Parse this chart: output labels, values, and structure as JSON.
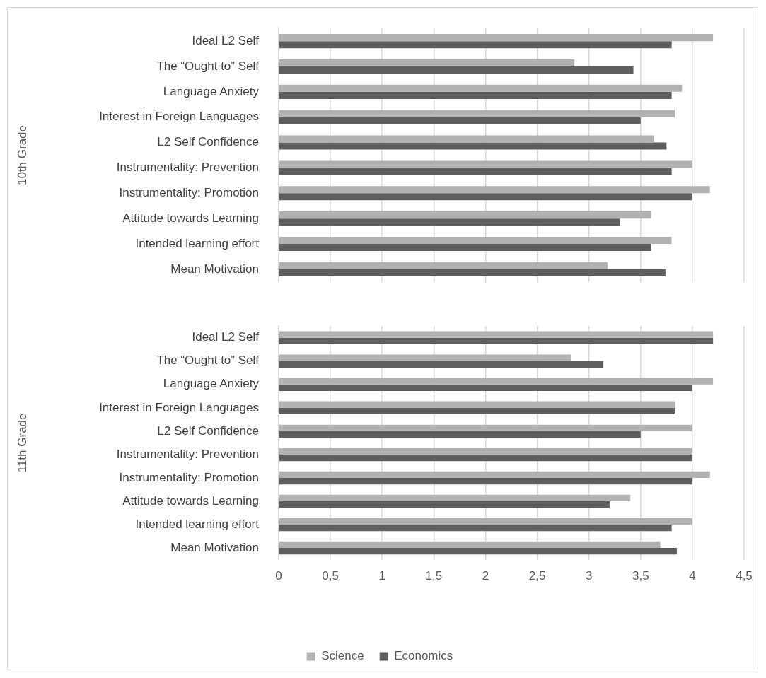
{
  "chart_data": [
    {
      "type": "bar",
      "orientation": "horizontal",
      "ylabel": "10th Grade",
      "categories": [
        "Ideal L2 Self",
        "The “Ought to” Self",
        "Language Anxiety",
        "Interest in Foreign Languages",
        "L2 Self Confidence",
        "Instrumentality: Prevention",
        "Instrumentality: Promotion",
        "Attitude towards Learning",
        "Intended learning effort",
        "Mean Motivation"
      ],
      "series": [
        {
          "color": "#b2b2b2",
          "values": [
            4.2,
            2.86,
            3.9,
            3.83,
            3.63,
            4.0,
            4.17,
            3.6,
            3.8,
            3.18
          ]
        },
        {
          "color": "#5e5e5e",
          "values": [
            3.8,
            3.43,
            3.8,
            3.5,
            3.75,
            3.8,
            4.0,
            3.3,
            3.6,
            3.74
          ]
        }
      ],
      "xlim": [
        0,
        4.5
      ],
      "xticks": [
        {
          "value": 0,
          "label": null
        },
        {
          "value": 0.5,
          "label": null
        },
        {
          "value": 1,
          "label": null
        },
        {
          "value": 1.5,
          "label": null
        },
        {
          "value": 2,
          "label": null
        },
        {
          "value": 2.5,
          "label": null
        },
        {
          "value": 3,
          "label": null
        },
        {
          "value": 3.5,
          "label": null
        },
        {
          "value": 4,
          "label": null
        },
        {
          "value": 4.5,
          "label": null
        }
      ],
      "grid": "x",
      "tick_labels": "y"
    },
    {
      "type": "bar",
      "orientation": "horizontal",
      "ylabel": "11th Grade",
      "categories": [
        "Ideal L2 Self",
        "The “Ought to” Self",
        "Language Anxiety",
        "Interest in Foreign Languages",
        "L2 Self Confidence",
        "Instrumentality: Prevention",
        "Instrumentality: Promotion",
        "Attitude towards Learning",
        "Intended learning effort",
        "Mean Motivation"
      ],
      "series": [
        {
          "name": "Science",
          "color": "#b2b2b2",
          "values": [
            4.2,
            2.83,
            4.2,
            3.83,
            4.0,
            4.0,
            4.17,
            3.4,
            4.0,
            3.69
          ]
        },
        {
          "name": "Economics",
          "color": "#5e5e5e",
          "values": [
            4.2,
            3.14,
            4.0,
            3.83,
            3.5,
            4.0,
            4.0,
            3.2,
            3.8,
            3.85
          ]
        }
      ],
      "xlim": [
        0,
        4.5
      ],
      "xticks": [
        0,
        {
          "value": 0.5,
          "label": "0,5"
        },
        1,
        {
          "value": 1.5,
          "label": "1,5"
        },
        2,
        {
          "value": 2.5,
          "label": "2,5"
        },
        3,
        {
          "value": 3.5,
          "label": "3,5"
        },
        4,
        {
          "value": 4.5,
          "label": "4,5"
        }
      ],
      "grid": "x",
      "legend": "bottom"
    }
  ]
}
